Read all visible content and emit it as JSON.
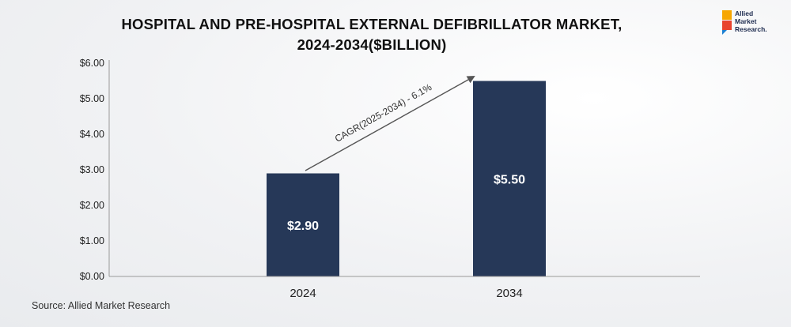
{
  "header": {
    "title_line1": "HOSPITAL AND PRE-HOSPITAL EXTERNAL DEFIBRILLATOR MARKET,",
    "title_line2": "2024-2034($BILLION)"
  },
  "logo": {
    "line1": "Allied",
    "line2": "Market",
    "line3": "Research."
  },
  "chart_data": {
    "type": "bar",
    "title": "HOSPITAL AND PRE-HOSPITAL EXTERNAL DEFIBRILLATOR MARKET, 2024-2034($BILLION)",
    "categories": [
      "2024",
      "2034"
    ],
    "values": [
      2.9,
      5.5
    ],
    "data_labels": [
      "$2.90",
      "$5.50"
    ],
    "ylim": [
      0,
      6
    ],
    "yticks": [
      0,
      1,
      2,
      3,
      4,
      5,
      6
    ],
    "ytick_labels": [
      "$0.00",
      "$1.00",
      "$2.00",
      "$3.00",
      "$4.00",
      "$5.00",
      "$6.00"
    ],
    "bar_color": "#263858",
    "grid": false,
    "annotation": "CAGR(2025-2034) - 6.1%"
  },
  "footer": {
    "source": "Source: Allied Market Research"
  }
}
